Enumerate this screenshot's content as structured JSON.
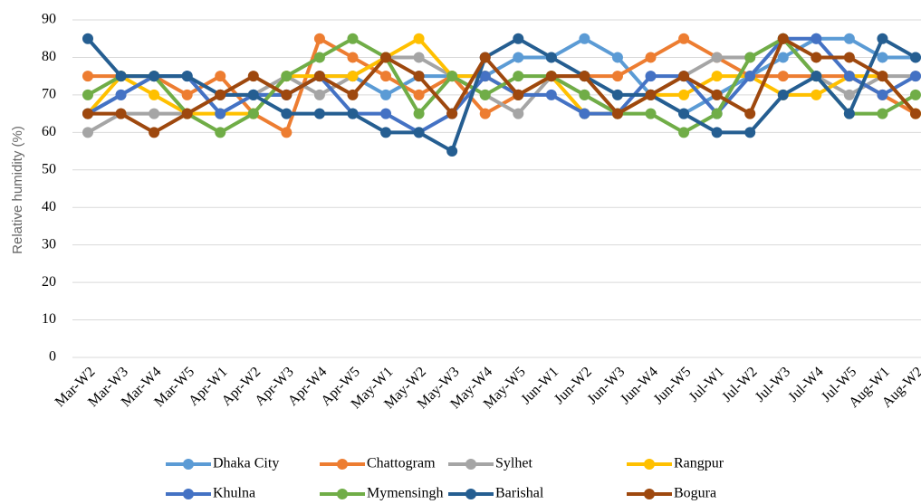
{
  "chart_data": {
    "type": "line",
    "y_label": "Relative humidity (%)",
    "categories": [
      "Mar-W2",
      "Mar-W3",
      "Mar-W4",
      "Mar-W5",
      "Apr-W1",
      "Apr-W2",
      "Apr-W3",
      "Apr-W4",
      "Apr-W5",
      "May-W1",
      "May-W2",
      "May-W3",
      "May-W4",
      "May-W5",
      "Jun-W1",
      "Jun-W2",
      "Jun-W3",
      "Jun-W4",
      "Jun-W5",
      "Jul-W1",
      "Jul-W2",
      "Jul-W3",
      "Jul-W4",
      "Jul-W5",
      "Aug-W1",
      "Aug-W2"
    ],
    "ylim": [
      0,
      90
    ],
    "yticks": [
      0,
      10,
      20,
      30,
      40,
      50,
      60,
      70,
      80,
      90
    ],
    "grid": true,
    "series": [
      {
        "name": "Dhaka City",
        "color": "#5b9bd5",
        "values": [
          65,
          70,
          75,
          75,
          65,
          70,
          70,
          75,
          75,
          70,
          75,
          75,
          75,
          80,
          80,
          85,
          80,
          70,
          65,
          70,
          75,
          80,
          85,
          85,
          80,
          80
        ]
      },
      {
        "name": "Chattogram",
        "color": "#ed7d31",
        "values": [
          75,
          75,
          75,
          70,
          75,
          65,
          60,
          85,
          80,
          75,
          70,
          75,
          65,
          70,
          75,
          75,
          75,
          80,
          85,
          80,
          75,
          75,
          75,
          75,
          70,
          65
        ]
      },
      {
        "name": "Sylhet",
        "color": "#a5a5a5",
        "values": [
          60,
          65,
          65,
          65,
          70,
          70,
          75,
          70,
          75,
          80,
          80,
          75,
          70,
          65,
          75,
          70,
          65,
          70,
          75,
          80,
          80,
          85,
          75,
          70,
          75,
          75
        ]
      },
      {
        "name": "Rangpur",
        "color": "#ffc000",
        "values": [
          65,
          75,
          70,
          65,
          65,
          65,
          75,
          75,
          75,
          80,
          85,
          75,
          75,
          70,
          75,
          65,
          65,
          70,
          70,
          75,
          75,
          70,
          70,
          75,
          75,
          65
        ]
      },
      {
        "name": "Khulna",
        "color": "#4472c4",
        "values": [
          65,
          70,
          75,
          75,
          65,
          70,
          70,
          75,
          65,
          65,
          60,
          65,
          75,
          70,
          70,
          65,
          65,
          75,
          75,
          65,
          75,
          85,
          85,
          75,
          70,
          75
        ]
      },
      {
        "name": "Mymensingh",
        "color": "#70ad47",
        "values": [
          70,
          75,
          75,
          65,
          60,
          65,
          75,
          80,
          85,
          80,
          65,
          75,
          70,
          75,
          75,
          70,
          65,
          65,
          60,
          65,
          80,
          85,
          75,
          65,
          65,
          70
        ]
      },
      {
        "name": "Barishal",
        "color": "#255e91",
        "values": [
          85,
          75,
          75,
          75,
          70,
          70,
          65,
          65,
          65,
          60,
          60,
          55,
          80,
          85,
          80,
          75,
          70,
          70,
          65,
          60,
          60,
          70,
          75,
          65,
          85,
          80
        ]
      },
      {
        "name": "Bogura",
        "color": "#9e480e",
        "values": [
          65,
          65,
          60,
          65,
          70,
          75,
          70,
          75,
          70,
          80,
          75,
          65,
          80,
          70,
          75,
          75,
          65,
          70,
          75,
          70,
          65,
          85,
          80,
          80,
          75,
          65
        ]
      }
    ]
  }
}
